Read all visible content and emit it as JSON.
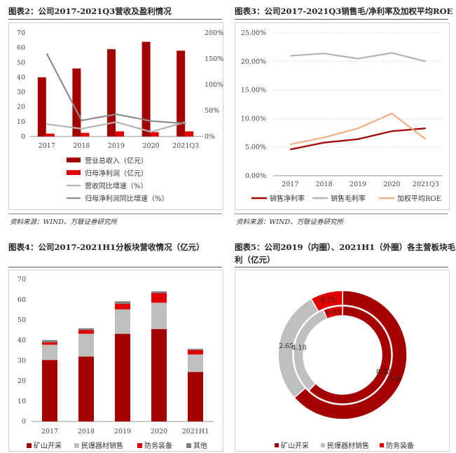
{
  "panels": {
    "p2": {
      "title": "图表2：公司2017-2021Q3营收及盈利情况",
      "source": "资料来源：WIND、万联证券研究所"
    },
    "p3": {
      "title": "图表3：公司2017-2021Q3销售毛/净利率及加权平均ROE",
      "source": "资料来源：WIND、万联证券研究所"
    },
    "p4": {
      "title": "图表4：公司2017-2021H1分板块营收情况（亿元）"
    },
    "p5": {
      "title_line1": "图表5：公司2019（内圈）、2021H1（外圈）各主营板块毛",
      "title_line2": "利（亿元）"
    }
  },
  "chart_data": [
    {
      "id": "chart2",
      "type": "bar",
      "categories": [
        "2017",
        "2018",
        "2019",
        "2020",
        "2021Q3"
      ],
      "ylim": [
        0,
        70
      ],
      "y_ticks": [
        "0",
        "10",
        "20",
        "30",
        "40",
        "50",
        "60",
        "70"
      ],
      "y2lim": [
        0,
        2.0
      ],
      "y2_ticks": [
        "0%",
        "50%",
        "100%",
        "150%",
        "200%"
      ],
      "series": [
        {
          "name": "营业总收入（亿元）",
          "type": "bar",
          "axis": "left",
          "color": "#a50000",
          "values": [
            40,
            46,
            59,
            64,
            58
          ]
        },
        {
          "name": "归母净利润（亿元）",
          "type": "bar",
          "axis": "left",
          "color": "#e00000",
          "values": [
            2,
            2.5,
            3.5,
            3,
            3.5
          ]
        },
        {
          "name": "营收同比增速（%）",
          "type": "line",
          "axis": "right",
          "color": "#b5b5b5",
          "values": [
            0.24,
            0.15,
            0.28,
            0.09,
            0.28
          ]
        },
        {
          "name": "归母净利润同比增速（%）",
          "type": "line",
          "axis": "right",
          "color": "#8c8c8c",
          "values": [
            1.6,
            0.31,
            0.43,
            0.3,
            0.25
          ]
        }
      ]
    },
    {
      "id": "chart3",
      "type": "line",
      "categories": [
        "2017",
        "2018",
        "2019",
        "2020",
        "2021Q3"
      ],
      "ylim": [
        0,
        25
      ],
      "y_ticks": [
        "0.00%",
        "5.00%",
        "10.00%",
        "15.00%",
        "20.00%",
        "25.00%"
      ],
      "series": [
        {
          "name": "销售净利率",
          "color": "#a50000",
          "values": [
            4.6,
            5.8,
            6.4,
            7.8,
            8.3
          ]
        },
        {
          "name": "销售毛利率",
          "color": "#b5b5b5",
          "values": [
            21.0,
            21.4,
            20.5,
            21.5,
            20.0
          ]
        },
        {
          "name": "加权平均ROE",
          "color": "#f5b183",
          "values": [
            5.5,
            6.7,
            8.3,
            10.9,
            6.4
          ]
        }
      ]
    },
    {
      "id": "chart4",
      "type": "bar",
      "stacked": true,
      "categories": [
        "2017",
        "2018",
        "2019",
        "2020",
        "2021H1"
      ],
      "ylim": [
        0,
        70
      ],
      "y_ticks": [
        "0",
        "10",
        "20",
        "30",
        "40",
        "50",
        "60",
        "70"
      ],
      "series": [
        {
          "name": "矿山开采",
          "color": "#a50000",
          "values": [
            30.3,
            32,
            43.2,
            45.5,
            24.4
          ]
        },
        {
          "name": "民爆器材销售",
          "color": "#bfbfbf",
          "values": [
            7.5,
            11.2,
            12,
            13,
            8.6
          ]
        },
        {
          "name": "防务装备",
          "color": "#e00000",
          "values": [
            1.2,
            1.8,
            2.8,
            4.8,
            2.2
          ]
        },
        {
          "name": "其他",
          "color": "#808080",
          "values": [
            1.1,
            0.9,
            1.2,
            0.8,
            0.6
          ]
        }
      ]
    },
    {
      "id": "chart5",
      "type": "pie",
      "donut": true,
      "series": [
        {
          "name": "2021H1",
          "ring": "outer",
          "values": [
            5.9,
            2.65,
            0.75
          ],
          "labels": [
            "5.9",
            "2.65",
            "0.75"
          ]
        },
        {
          "name": "2019",
          "ring": "inner",
          "values": [
            8.22,
            4.18,
            0.85
          ],
          "labels": [
            "8.22",
            "4.18",
            "0.85"
          ]
        }
      ],
      "categories": [
        "矿山开采",
        "民爆器材销售",
        "防务装备"
      ],
      "colors": [
        "#a50000",
        "#bfbfbf",
        "#e00000"
      ]
    }
  ]
}
